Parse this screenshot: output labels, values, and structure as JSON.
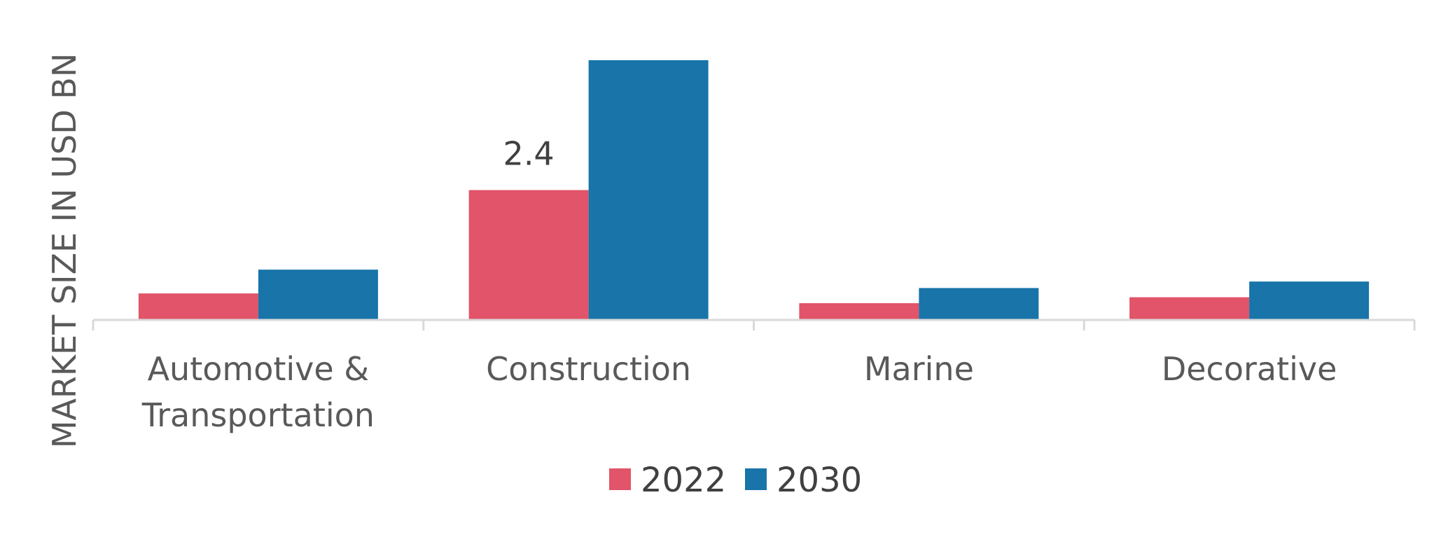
{
  "chart_data": {
    "type": "bar",
    "title": "",
    "xlabel": "",
    "ylabel": "MARKET SIZE IN USD BN",
    "categories": [
      [
        "Automotive &",
        "Transportation"
      ],
      [
        "Construction"
      ],
      [
        "Marine"
      ],
      [
        "Decorative"
      ]
    ],
    "series": [
      {
        "name": "2022",
        "color": "#E15469",
        "values": [
          0.49,
          2.4,
          0.31,
          0.42
        ]
      },
      {
        "name": "2030",
        "color": "#1874A9",
        "values": [
          0.93,
          4.8,
          0.59,
          0.71
        ]
      }
    ],
    "data_labels": [
      {
        "series": 0,
        "category": 1,
        "text": "2.4"
      }
    ],
    "ylim": [
      0,
      4.8
    ],
    "grid": false,
    "legend": "bottom-center",
    "axis_color": "#D9D9D9"
  }
}
